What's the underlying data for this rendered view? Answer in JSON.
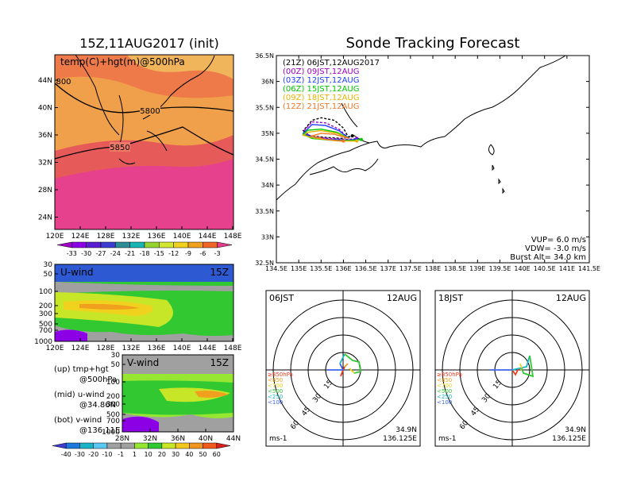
{
  "left": {
    "title": "15Z,11AUG2017 (init)",
    "map": {
      "label": "temp(C)+hgt(m)@500hPa",
      "contour_labels": [
        "5800",
        "5850",
        "800"
      ],
      "lat_ticks": [
        "44N",
        "40N",
        "36N",
        "32N",
        "28N",
        "24N"
      ],
      "lon_ticks": [
        "120E",
        "124E",
        "128E",
        "132E",
        "136E",
        "140E",
        "144E",
        "148E"
      ]
    },
    "temp_colorbar": {
      "labels": [
        "-33",
        "-30",
        "-27",
        "-24",
        "-21",
        "-18",
        "-15",
        "-12",
        "-9",
        "-6",
        "-3"
      ],
      "colors": [
        "#a000c8",
        "#8c00e6",
        "#5a1ed2",
        "#3c3cd2",
        "#2d8c96",
        "#19b4b4",
        "#96d232",
        "#d2e632",
        "#f0d21e",
        "#f0a01e",
        "#f06428",
        "#e63c8c"
      ]
    },
    "uwind": {
      "label": "U-wind",
      "time": "15Z",
      "p_ticks": [
        "30",
        "50",
        "100",
        "200",
        "300",
        "500",
        "700",
        "1000"
      ],
      "lon_ticks": [
        "120E",
        "124E",
        "128E",
        "132E",
        "136E",
        "140E",
        "144E",
        "148E"
      ]
    },
    "vwind": {
      "label": "V-wind",
      "time": "15Z",
      "p_ticks": [
        "30",
        "50",
        "100",
        "200",
        "300",
        "500",
        "700",
        "1000"
      ],
      "lat_ticks": [
        "28N",
        "32N",
        "36N",
        "40N",
        "44N"
      ]
    },
    "legend_text": {
      "up1": "(up)  tmp+hgt",
      "up2": "@500hPa",
      "mid1": "(mid)  u-wind",
      "mid2": "@34.86N",
      "bot1": "(bot)  v-wind",
      "bot2": "@136.11E"
    },
    "wind_colorbar": {
      "labels": [
        "-40",
        "-30",
        "-20",
        "-10",
        "-1",
        "1",
        "10",
        "20",
        "30",
        "40",
        "50",
        "60"
      ],
      "colors": [
        "#3c3cd2",
        "#1e78dc",
        "#19b4c8",
        "#5ac8f0",
        "#a0a0a0",
        "#a0a0a0",
        "#96e632",
        "#32c832",
        "#c8e628",
        "#f0c81e",
        "#f0961e",
        "#f05a1e",
        "#dc1e1e"
      ]
    }
  },
  "right": {
    "title": "Sonde Tracking Forecast",
    "map": {
      "lat_ticks": [
        "36.5N",
        "36N",
        "35.5N",
        "35N",
        "34.5N",
        "34N",
        "33.5N",
        "33N",
        "32.5N"
      ],
      "lon_ticks": [
        "134.5E",
        "135E",
        "135.5E",
        "136E",
        "136.5E",
        "137E",
        "137.5E",
        "138E",
        "138.5E",
        "139E",
        "139.5E",
        "140E",
        "140.5E",
        "141E",
        "141.5E"
      ],
      "legend": [
        {
          "text": "(21Z)  06JST,12AUG2017",
          "color": "#000000"
        },
        {
          "text": "(00Z)  09JST,12AUG",
          "color": "#a000c8"
        },
        {
          "text": "(03Z)  12JST,12AUG",
          "color": "#1e3cff"
        },
        {
          "text": "(06Z)  15JST,12AUG",
          "color": "#00c800"
        },
        {
          "text": "(09Z)  18JST,12AUG",
          "color": "#e6b400"
        },
        {
          "text": "(12Z)  21JST,12AUG",
          "color": "#f07828"
        }
      ],
      "params": {
        "vup": "VUP=   6.0  m/s",
        "vdw": "VDW=  -3.0  m/s",
        "burst": "Burst Alt=  34.0  km"
      }
    },
    "hodo_left": {
      "time": "06JST",
      "date": "12AUG",
      "ring_labels": [
        "15",
        "30",
        "45",
        "60"
      ],
      "levels": [
        {
          "text": "≥850hPa",
          "color": "#f03c1e"
        },
        {
          "text": "<850",
          "color": "#f0a01e"
        },
        {
          "text": "<700",
          "color": "#e6d21e"
        },
        {
          "text": "<500",
          "color": "#32c832"
        },
        {
          "text": "<250",
          "color": "#19b4c8"
        },
        {
          "text": "<100",
          "color": "#3c64e6"
        }
      ],
      "lat": "34.9N",
      "lon": "136.125E",
      "unit": "ms-1"
    },
    "hodo_right": {
      "time": "18JST",
      "date": "12AUG",
      "ring_labels": [
        "15",
        "30",
        "45",
        "60"
      ],
      "levels": [
        {
          "text": "≥850hPa",
          "color": "#f03c1e"
        },
        {
          "text": "<850",
          "color": "#f0a01e"
        },
        {
          "text": "<700",
          "color": "#e6d21e"
        },
        {
          "text": "<500",
          "color": "#32c832"
        },
        {
          "text": "<250",
          "color": "#19b4c8"
        },
        {
          "text": "<100",
          "color": "#3c64e6"
        }
      ],
      "lat": "34.9N",
      "lon": "136.125E",
      "unit": "ms-1"
    }
  },
  "chart_data": [
    {
      "type": "heatmap",
      "title": "temp(C)+hgt(m)@500hPa",
      "x_range": [
        "120E",
        "148E"
      ],
      "y_range": [
        "24N",
        "46N"
      ],
      "contours": [
        5800,
        5850
      ],
      "colorbar_levels": [
        -33,
        -30,
        -27,
        -24,
        -21,
        -18,
        -15,
        -12,
        -9,
        -6,
        -3
      ]
    },
    {
      "type": "heatmap",
      "title": "U-wind",
      "x_range": [
        "120E",
        "148E"
      ],
      "y_levels_hPa": [
        30,
        50,
        100,
        200,
        300,
        500,
        700,
        1000
      ]
    },
    {
      "type": "heatmap",
      "title": "V-wind",
      "x_range": [
        "28N",
        "44N"
      ],
      "y_levels_hPa": [
        30,
        50,
        100,
        200,
        300,
        500,
        700,
        1000
      ]
    },
    {
      "type": "line",
      "title": "Sonde Tracking Forecast",
      "xlim": [
        134.5,
        141.5
      ],
      "ylim": [
        32.5,
        36.5
      ],
      "series": [
        {
          "name": "(21Z)  06JST,12AUG2017",
          "x": [
            136.125,
            136.0,
            135.8,
            135.5,
            135.3,
            135.1,
            135.25,
            135.6,
            136.0,
            136.2
          ],
          "y": [
            34.9,
            35.1,
            35.25,
            35.3,
            35.25,
            35.05,
            34.95,
            34.92,
            34.9,
            34.95
          ]
        },
        {
          "name": "(00Z)  09JST,12AUG",
          "x": [
            136.125,
            135.9,
            135.6,
            135.3,
            135.1,
            135.3,
            135.7,
            136.1,
            136.3
          ],
          "y": [
            34.9,
            35.08,
            35.2,
            35.22,
            35.03,
            34.93,
            34.9,
            34.88,
            34.9
          ]
        },
        {
          "name": "(03Z)  12JST,12AUG",
          "x": [
            136.125,
            135.9,
            135.6,
            135.3,
            135.1,
            135.3,
            135.7,
            136.1,
            136.3
          ],
          "y": [
            34.9,
            35.05,
            35.15,
            35.17,
            35.0,
            34.92,
            34.88,
            34.87,
            34.88
          ]
        },
        {
          "name": "(06Z)  15JST,12AUG",
          "x": [
            136.125,
            135.85,
            135.5,
            135.2,
            135.1,
            135.3,
            135.8,
            136.2,
            136.4
          ],
          "y": [
            34.9,
            35.02,
            35.08,
            35.06,
            34.98,
            34.9,
            34.86,
            34.86,
            34.88
          ]
        },
        {
          "name": "(09Z)  18JST,12AUG",
          "x": [
            136.125,
            135.85,
            135.5,
            135.2,
            135.1,
            135.4,
            135.9,
            136.3
          ],
          "y": [
            34.9,
            35.0,
            35.05,
            35.02,
            34.96,
            34.9,
            34.85,
            34.85
          ]
        },
        {
          "name": "(12Z)  21JST,12AUG",
          "x": [
            136.125,
            135.8,
            135.5,
            135.3,
            135.6,
            136.0
          ],
          "y": [
            34.9,
            34.98,
            35.0,
            34.95,
            34.88,
            34.85
          ]
        }
      ]
    }
  ]
}
